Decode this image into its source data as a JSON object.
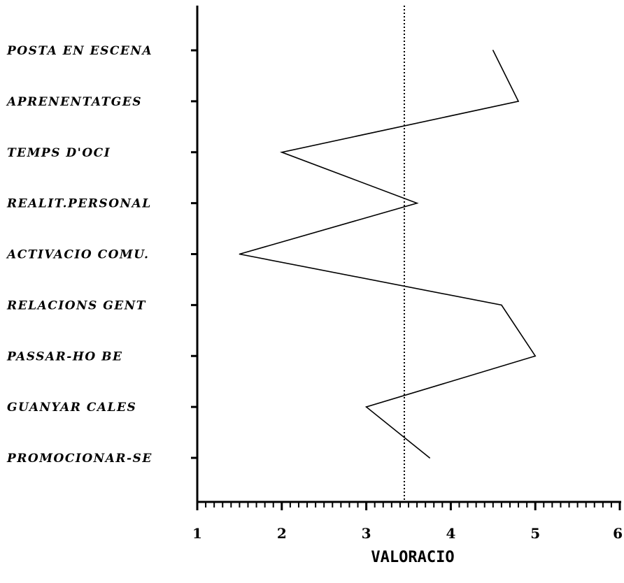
{
  "chart_data": {
    "type": "line",
    "orientation": "horizontal",
    "categories": [
      "POSTA EN ESCENA",
      "APRENENTATGES",
      "TEMPS D'OCI",
      "REALIT.PERSONAL",
      "ACTIVACIO COMU.",
      "RELACIONS GENT",
      "PASSAR-HO BE",
      "GUANYAR CALES",
      "PROMOCIONAR-SE"
    ],
    "values": [
      4.5,
      4.8,
      2.0,
      3.6,
      1.5,
      4.6,
      5.0,
      3.0,
      3.75
    ],
    "reference_line": 3.45,
    "xlim": [
      1,
      6
    ],
    "xticks": [
      "1",
      "2",
      "3",
      "4",
      "5",
      "6"
    ],
    "xlabel": "VALORACIO",
    "title": "",
    "grid": false,
    "colors": {
      "line": "#000000",
      "axis": "#000000",
      "background": "#ffffff"
    }
  }
}
